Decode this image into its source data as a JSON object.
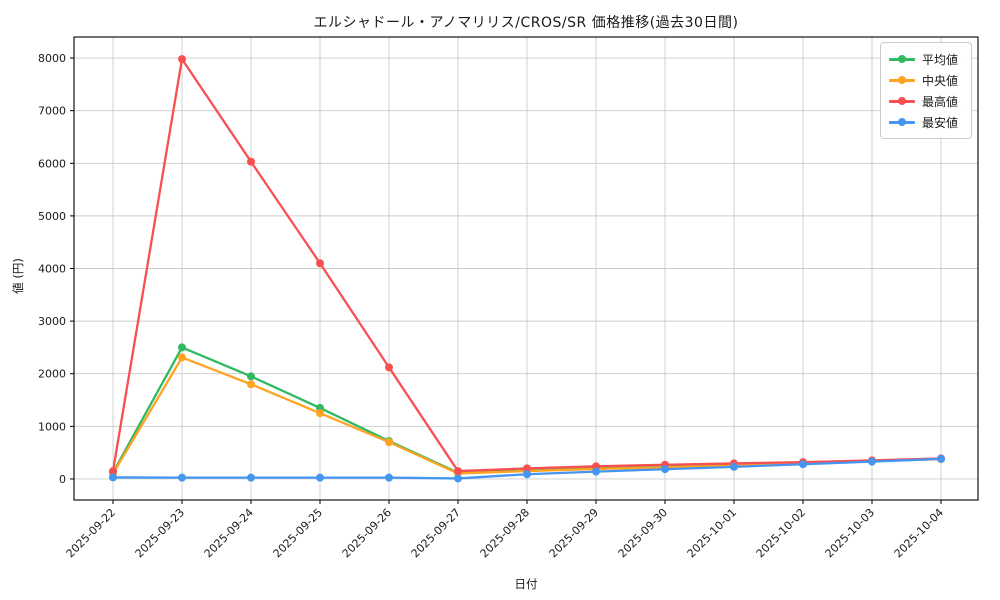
{
  "chart_data": {
    "type": "line",
    "title": "エルシャドール・アノマリリス/CROS/SR 価格推移(過去30日間)",
    "xlabel": "日付",
    "ylabel": "値 (円)",
    "x": [
      "2025-09-22",
      "2025-09-23",
      "2025-09-24",
      "2025-09-25",
      "2025-09-26",
      "2025-09-27",
      "2025-09-28",
      "2025-09-29",
      "2025-09-30",
      "2025-10-01",
      "2025-10-02",
      "2025-10-03",
      "2025-10-04"
    ],
    "series": [
      {
        "name": "平均値",
        "color": "#30b960",
        "values": [
          120,
          2500,
          1950,
          1350,
          720,
          120,
          160,
          200,
          230,
          265,
          300,
          340,
          380
        ]
      },
      {
        "name": "中央値",
        "color": "#ffa322",
        "values": [
          100,
          2310,
          1800,
          1250,
          700,
          105,
          150,
          190,
          220,
          255,
          295,
          335,
          378
        ]
      },
      {
        "name": "最高値",
        "color": "#f85050",
        "values": [
          150,
          7980,
          6030,
          4100,
          2120,
          150,
          200,
          240,
          270,
          295,
          320,
          352,
          390
        ]
      },
      {
        "name": "最安値",
        "color": "#4596f2",
        "values": [
          30,
          25,
          25,
          25,
          25,
          10,
          90,
          140,
          185,
          230,
          280,
          330,
          382
        ]
      }
    ],
    "yticks": [
      0,
      1000,
      2000,
      3000,
      4000,
      5000,
      6000,
      7000,
      8000
    ],
    "ylim": [
      -400,
      8400
    ],
    "grid": true,
    "grid_color": "#cccccc",
    "axis_color": "#000000",
    "legend_position": "upper right"
  }
}
